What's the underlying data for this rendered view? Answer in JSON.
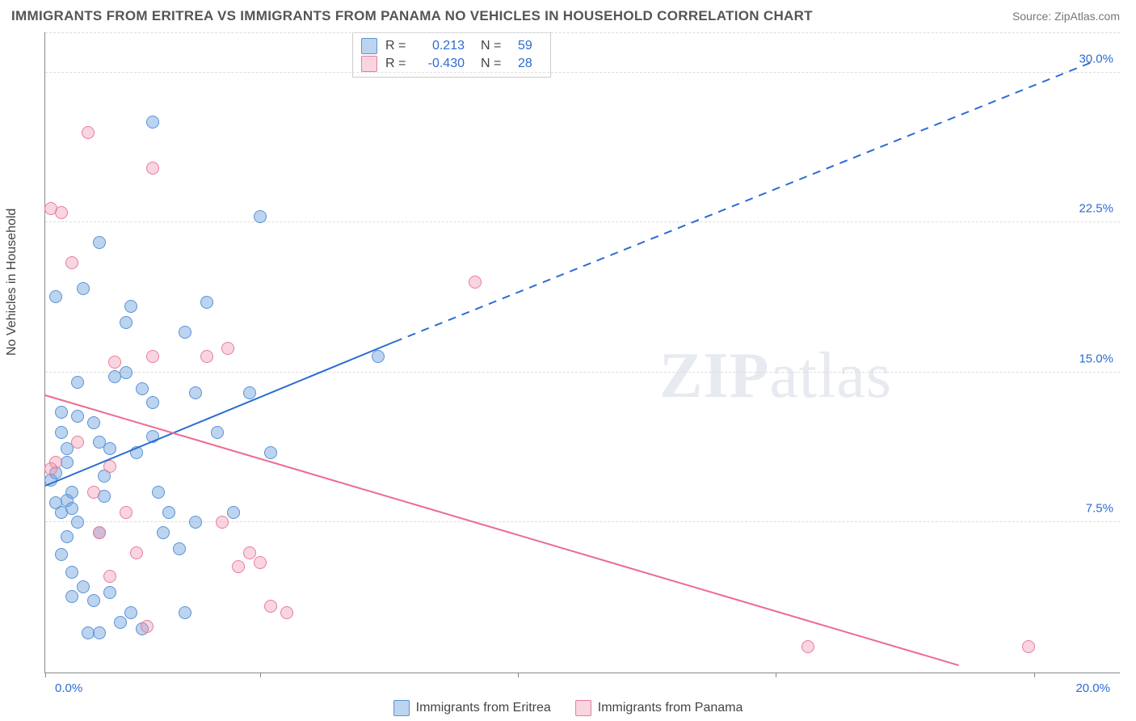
{
  "title": "IMMIGRANTS FROM ERITREA VS IMMIGRANTS FROM PANAMA NO VEHICLES IN HOUSEHOLD CORRELATION CHART",
  "source": "Source: ZipAtlas.com",
  "ylabel": "No Vehicles in Household",
  "watermark": "ZIPatlas",
  "chart": {
    "type": "scatter",
    "background_color": "#ffffff",
    "grid_color": "#dddddd",
    "axis_color": "#888888",
    "text_color": "#444444",
    "value_color": "#2b6cd4",
    "xlim": [
      0,
      20
    ],
    "ylim": [
      0,
      32
    ],
    "x_ticks": [
      "0.0%",
      "20.0%"
    ],
    "y_ticks": [
      {
        "v": 7.5,
        "label": "7.5%"
      },
      {
        "v": 15.0,
        "label": "15.0%"
      },
      {
        "v": 22.5,
        "label": "22.5%"
      },
      {
        "v": 30.0,
        "label": "30.0%"
      }
    ],
    "x_tick_positions_pct": [
      0,
      20,
      44,
      68,
      92
    ],
    "marker_radius": 7,
    "marker_opacity": 0.45,
    "series": [
      {
        "name": "Immigrants from Eritrea",
        "color_fill": "#95bce8",
        "color_stroke": "#5a93d6",
        "trend_color": "#2b6cd4",
        "R": "0.213",
        "N": "59",
        "trend": {
          "x1": 0,
          "y1": 9.3,
          "x2_solid": 6.5,
          "y2_solid": 16.5,
          "x2_dash": 19.5,
          "y2_dash": 30.5
        },
        "points": [
          [
            0.1,
            9.6
          ],
          [
            0.2,
            10.0
          ],
          [
            0.3,
            12.0
          ],
          [
            0.4,
            8.6
          ],
          [
            0.3,
            13.0
          ],
          [
            0.5,
            9.0
          ],
          [
            0.5,
            8.2
          ],
          [
            0.6,
            7.5
          ],
          [
            0.4,
            6.8
          ],
          [
            0.3,
            5.9
          ],
          [
            0.5,
            5.0
          ],
          [
            0.7,
            4.3
          ],
          [
            0.9,
            3.6
          ],
          [
            1.0,
            7.0
          ],
          [
            1.1,
            8.8
          ],
          [
            1.2,
            11.2
          ],
          [
            1.3,
            14.8
          ],
          [
            1.5,
            17.5
          ],
          [
            1.6,
            18.3
          ],
          [
            1.0,
            21.5
          ],
          [
            2.0,
            27.5
          ],
          [
            1.0,
            11.5
          ],
          [
            0.7,
            19.2
          ],
          [
            0.2,
            8.5
          ],
          [
            0.4,
            10.5
          ],
          [
            0.6,
            12.8
          ],
          [
            1.8,
            14.2
          ],
          [
            2.1,
            9.0
          ],
          [
            2.3,
            8.0
          ],
          [
            2.0,
            11.8
          ],
          [
            2.6,
            17.0
          ],
          [
            2.8,
            14.0
          ],
          [
            3.0,
            18.5
          ],
          [
            3.2,
            12.0
          ],
          [
            2.5,
            6.2
          ],
          [
            3.5,
            8.0
          ],
          [
            3.8,
            14.0
          ],
          [
            4.0,
            22.8
          ],
          [
            4.2,
            11.0
          ],
          [
            1.8,
            2.2
          ],
          [
            1.4,
            2.5
          ],
          [
            1.6,
            3.0
          ],
          [
            2.2,
            7.0
          ],
          [
            1.2,
            4.0
          ],
          [
            0.8,
            2.0
          ],
          [
            0.5,
            3.8
          ],
          [
            1.0,
            2.0
          ],
          [
            2.6,
            3.0
          ],
          [
            2.8,
            7.5
          ],
          [
            6.2,
            15.8
          ],
          [
            0.2,
            18.8
          ],
          [
            0.6,
            14.5
          ],
          [
            1.5,
            15.0
          ],
          [
            1.7,
            11.0
          ],
          [
            2.0,
            13.5
          ],
          [
            0.9,
            12.5
          ],
          [
            1.1,
            9.8
          ],
          [
            0.4,
            11.2
          ],
          [
            0.3,
            8.0
          ]
        ]
      },
      {
        "name": "Immigrants from Panama",
        "color_fill": "#f5b9ca",
        "color_stroke": "#e77d9f",
        "trend_color": "#ed6a8f",
        "R": "-0.430",
        "N": "28",
        "trend": {
          "x1": 0,
          "y1": 13.8,
          "x2_solid": 17.0,
          "y2_solid": 0.3,
          "x2_dash": 17.0,
          "y2_dash": 0.3
        },
        "points": [
          [
            0.1,
            23.2
          ],
          [
            0.3,
            23.0
          ],
          [
            0.8,
            27.0
          ],
          [
            2.0,
            25.2
          ],
          [
            0.2,
            10.5
          ],
          [
            0.5,
            20.5
          ],
          [
            1.3,
            15.5
          ],
          [
            0.1,
            10.2
          ],
          [
            0.9,
            9.0
          ],
          [
            1.2,
            10.3
          ],
          [
            1.5,
            8.0
          ],
          [
            2.0,
            15.8
          ],
          [
            3.0,
            15.8
          ],
          [
            3.4,
            16.2
          ],
          [
            1.7,
            6.0
          ],
          [
            1.9,
            2.3
          ],
          [
            3.3,
            7.5
          ],
          [
            3.6,
            5.3
          ],
          [
            3.8,
            6.0
          ],
          [
            4.2,
            3.3
          ],
          [
            4.5,
            3.0
          ],
          [
            4.0,
            5.5
          ],
          [
            1.0,
            7.0
          ],
          [
            1.2,
            4.8
          ],
          [
            8.0,
            19.5
          ],
          [
            14.2,
            1.3
          ],
          [
            18.3,
            1.3
          ],
          [
            0.6,
            11.5
          ]
        ]
      }
    ]
  },
  "bottom_legend": [
    {
      "swatch": "blue",
      "label": "Immigrants from Eritrea"
    },
    {
      "swatch": "pink",
      "label": "Immigrants from Panama"
    }
  ]
}
